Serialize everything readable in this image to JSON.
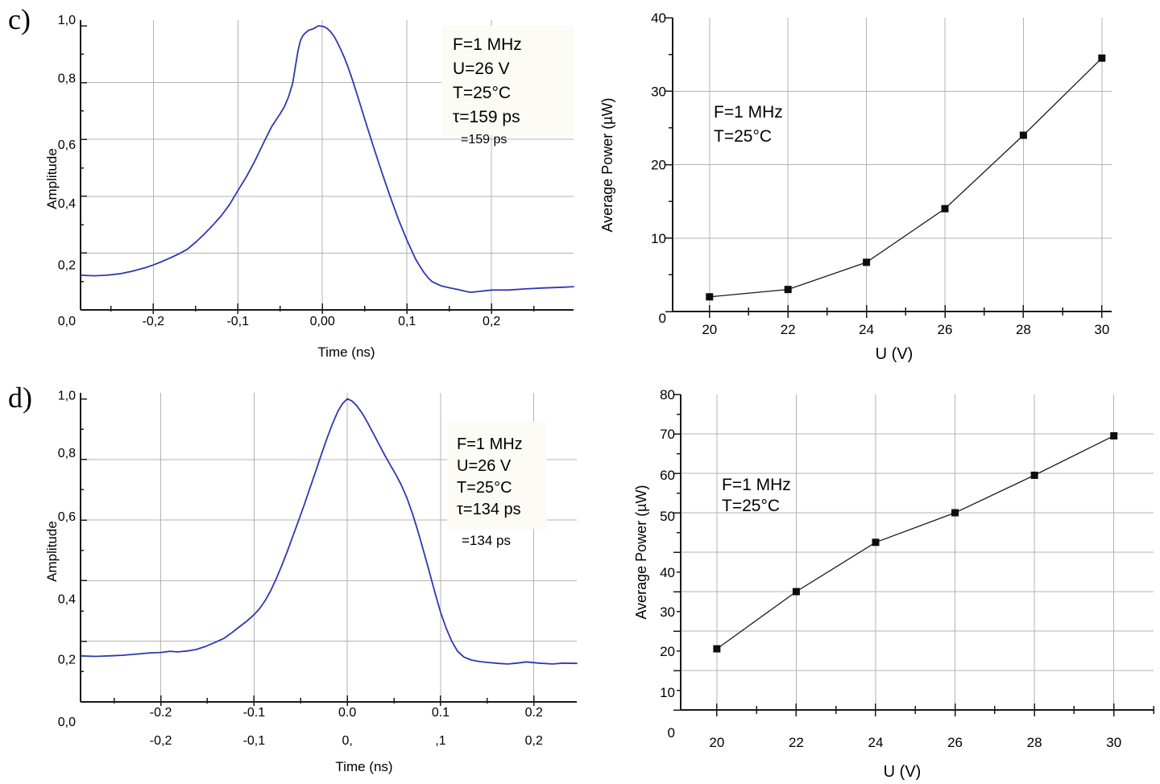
{
  "page": {
    "background": "#ffffff",
    "colors": {
      "grid": "#b3b3b3",
      "axis": "#1a1a1a",
      "text": "#000000",
      "annotation_box_fill": "#fcfbf6"
    }
  },
  "panels": {
    "c_label": "c)",
    "d_label": "d)"
  },
  "chart_data": [
    {
      "id": "pulse-c",
      "type": "line",
      "title": "",
      "xlabel": "Time (ns)",
      "ylabel": "Amplitude",
      "xlim": [
        -0.286,
        0.297
      ],
      "ylim": [
        0,
        1.02
      ],
      "grid": true,
      "legend": "none",
      "line_color": "#3137b0",
      "x_ticks": [
        {
          "v": -0.2,
          "label": "-0,2"
        },
        {
          "v": -0.1,
          "label": "-0,1"
        },
        {
          "v": 0.0,
          "label": "0,00"
        },
        {
          "v": 0.1,
          "label": "0,1"
        },
        {
          "v": 0.2,
          "label": "0,2"
        }
      ],
      "x_minor_step": 0.05,
      "y_ticks": [
        {
          "v": 0.0,
          "label": "0,0",
          "dy": 13
        },
        {
          "v": 0.2,
          "label": "0,2",
          "dy": 14
        },
        {
          "v": 0.4,
          "label": "0,4",
          "dy": 8
        },
        {
          "v": 0.6,
          "label": "0,6",
          "dy": 6
        },
        {
          "v": 0.8,
          "label": "0,8",
          "dy": -6
        },
        {
          "v": 1.0,
          "label": "1,0",
          "dy": -8,
          "grid": false
        }
      ],
      "y_minor_step": 0.1,
      "annotation": {
        "boxed": true,
        "lines": [
          "F=1 MHz",
          "U=26 V",
          "T=25°C",
          "τ=159 ps"
        ]
      },
      "annotation_extra": "=159 ps",
      "series": [
        {
          "name": "normalized pulse shape",
          "x": [
            -0.286,
            -0.27,
            -0.255,
            -0.24,
            -0.225,
            -0.21,
            -0.2,
            -0.19,
            -0.18,
            -0.17,
            -0.16,
            -0.15,
            -0.14,
            -0.13,
            -0.12,
            -0.11,
            -0.1,
            -0.09,
            -0.08,
            -0.07,
            -0.06,
            -0.05,
            -0.045,
            -0.04,
            -0.035,
            -0.032,
            -0.029,
            -0.026,
            -0.023,
            -0.02,
            -0.016,
            -0.012,
            -0.008,
            -0.005,
            -0.002,
            0.002,
            0.006,
            0.01,
            0.014,
            0.018,
            0.022,
            0.026,
            0.03,
            0.035,
            0.04,
            0.045,
            0.05,
            0.06,
            0.07,
            0.08,
            0.09,
            0.1,
            0.11,
            0.115,
            0.12,
            0.125,
            0.13,
            0.14,
            0.15,
            0.16,
            0.17,
            0.175,
            0.185,
            0.2,
            0.22,
            0.24,
            0.26,
            0.285,
            0.297
          ],
          "y": [
            0.122,
            0.12,
            0.122,
            0.127,
            0.136,
            0.148,
            0.158,
            0.17,
            0.183,
            0.197,
            0.213,
            0.238,
            0.266,
            0.297,
            0.33,
            0.37,
            0.42,
            0.468,
            0.523,
            0.585,
            0.645,
            0.69,
            0.715,
            0.75,
            0.8,
            0.855,
            0.91,
            0.948,
            0.966,
            0.975,
            0.985,
            0.988,
            0.994,
            1.0,
            0.999,
            0.997,
            0.99,
            0.978,
            0.962,
            0.94,
            0.915,
            0.888,
            0.857,
            0.814,
            0.768,
            0.72,
            0.672,
            0.578,
            0.487,
            0.4,
            0.318,
            0.245,
            0.18,
            0.155,
            0.132,
            0.113,
            0.099,
            0.085,
            0.078,
            0.072,
            0.065,
            0.062,
            0.065,
            0.07,
            0.07,
            0.074,
            0.077,
            0.08,
            0.082
          ]
        }
      ]
    },
    {
      "id": "power-top",
      "type": "scatter-line",
      "title": "",
      "xlabel": "U (V)",
      "ylabel": "Average Power (µW)",
      "xlim": [
        19.06,
        30.25
      ],
      "ylim": [
        0,
        40
      ],
      "grid": true,
      "legend": "none",
      "marker": "square",
      "marker_color": "#0d0d0d",
      "line_color": "#1a1a1a",
      "x_ticks": [
        {
          "v": 20,
          "label": "20"
        },
        {
          "v": 22,
          "label": "22"
        },
        {
          "v": 24,
          "label": "24"
        },
        {
          "v": 26,
          "label": "26"
        },
        {
          "v": 28,
          "label": "28"
        },
        {
          "v": 30,
          "label": "30"
        }
      ],
      "x_minor_step": 1,
      "y_ticks": [
        {
          "v": 0,
          "label": "0",
          "dy": 8
        },
        {
          "v": 10,
          "label": "10"
        },
        {
          "v": 20,
          "label": "20"
        },
        {
          "v": 30,
          "label": "30"
        },
        {
          "v": 40,
          "label": "40"
        }
      ],
      "y_minor_step": 5,
      "annotation": {
        "boxed": false,
        "lines": [
          "F=1 MHz",
          "T=25°C"
        ]
      },
      "series": [
        {
          "name": "average power vs bias voltage",
          "x": [
            20,
            22,
            24,
            26,
            28,
            30
          ],
          "y": [
            2,
            3,
            6.7,
            14,
            24,
            34.5
          ]
        }
      ]
    },
    {
      "id": "pulse-d",
      "type": "line",
      "title": "",
      "xlabel": "Time (ns)",
      "ylabel": "Amplitude",
      "xlim": [
        -0.286,
        0.246
      ],
      "ylim": [
        0,
        1.02
      ],
      "grid": true,
      "legend": "none",
      "line_color": "#3137b0",
      "x_ticks": [
        {
          "v": -0.2,
          "label": "-0.2",
          "label2": "-0,2"
        },
        {
          "v": -0.1,
          "label": "-0.1",
          "label2": "-0,1"
        },
        {
          "v": 0.0,
          "label": "0.0",
          "label2": "0,"
        },
        {
          "v": 0.1,
          "label": "0.1",
          "label2": ",1"
        },
        {
          "v": 0.2,
          "label": "0.2",
          "label2": "0,2"
        }
      ],
      "x_minor_step": 0.05,
      "y_ticks": [
        {
          "v": 0.0,
          "label": "0,0",
          "dy": 24
        },
        {
          "v": 0.2,
          "label": "0,2",
          "dy": 22
        },
        {
          "v": 0.4,
          "label": "0,4",
          "dy": 22
        },
        {
          "v": 0.6,
          "label": "0,6",
          "dy": -5
        },
        {
          "v": 0.8,
          "label": "0,8",
          "dy": -9
        },
        {
          "v": 1.0,
          "label": "1,0",
          "dy": -5,
          "grid": false
        }
      ],
      "y_minor_step": 0.1,
      "annotation": {
        "boxed": true,
        "lines": [
          "F=1 MHz",
          "U=26 V",
          "T=25°C",
          "τ=134 ps"
        ]
      },
      "annotation_extra": "=134 ps",
      "series": [
        {
          "name": "normalized pulse shape",
          "x": [
            -0.286,
            -0.27,
            -0.255,
            -0.24,
            -0.225,
            -0.21,
            -0.2,
            -0.19,
            -0.182,
            -0.172,
            -0.162,
            -0.152,
            -0.142,
            -0.132,
            -0.124,
            -0.116,
            -0.108,
            -0.1,
            -0.094,
            -0.088,
            -0.082,
            -0.076,
            -0.07,
            -0.064,
            -0.058,
            -0.052,
            -0.046,
            -0.04,
            -0.034,
            -0.028,
            -0.022,
            -0.016,
            -0.01,
            -0.005,
            0.0,
            0.005,
            0.01,
            0.016,
            0.022,
            0.028,
            0.034,
            0.04,
            0.046,
            0.052,
            0.058,
            0.064,
            0.07,
            0.076,
            0.082,
            0.088,
            0.094,
            0.1,
            0.106,
            0.112,
            0.118,
            0.125,
            0.133,
            0.142,
            0.152,
            0.162,
            0.172,
            0.182,
            0.192,
            0.205,
            0.22,
            0.232,
            0.246
          ],
          "y": [
            0.152,
            0.15,
            0.152,
            0.154,
            0.158,
            0.162,
            0.163,
            0.167,
            0.165,
            0.168,
            0.173,
            0.183,
            0.196,
            0.21,
            0.228,
            0.247,
            0.266,
            0.288,
            0.308,
            0.335,
            0.368,
            0.408,
            0.452,
            0.5,
            0.55,
            0.6,
            0.652,
            0.706,
            0.76,
            0.815,
            0.868,
            0.917,
            0.96,
            0.985,
            1.0,
            0.993,
            0.978,
            0.952,
            0.92,
            0.885,
            0.85,
            0.815,
            0.782,
            0.75,
            0.715,
            0.672,
            0.62,
            0.56,
            0.495,
            0.428,
            0.36,
            0.296,
            0.243,
            0.2,
            0.168,
            0.148,
            0.138,
            0.133,
            0.13,
            0.127,
            0.125,
            0.128,
            0.132,
            0.128,
            0.125,
            0.128,
            0.127
          ]
        }
      ]
    },
    {
      "id": "power-bottom",
      "type": "scatter-line",
      "title": "",
      "xlabel": "U (V)",
      "ylabel": "Average Power (µW)",
      "xlim": [
        19.09,
        31.0
      ],
      "ylim": [
        0,
        80
      ],
      "grid": true,
      "legend": "none",
      "marker": "square",
      "marker_color": "#0d0d0d",
      "line_color": "#1a1a1a",
      "x_ticks": [
        {
          "v": 20,
          "label": "20"
        },
        {
          "v": 22,
          "label": "22"
        },
        {
          "v": 24,
          "label": "24"
        },
        {
          "v": 26,
          "label": "26"
        },
        {
          "v": 28,
          "label": "28"
        },
        {
          "v": 30,
          "label": "30"
        }
      ],
      "x_minor_step": 1,
      "y_ticks": [
        {
          "v": 0,
          "label": "0",
          "dy": 28
        },
        {
          "v": 10,
          "label": "10",
          "dy": 27
        },
        {
          "v": 20,
          "label": "20",
          "dy": 25
        },
        {
          "v": 30,
          "label": "30",
          "dy": 25
        },
        {
          "v": 40,
          "label": "40",
          "dy": 25
        },
        {
          "v": 50,
          "label": "50",
          "dy": 4
        },
        {
          "v": 60,
          "label": "60",
          "dy": 2
        },
        {
          "v": 70,
          "label": "70"
        },
        {
          "v": 80,
          "label": "80"
        }
      ],
      "y_minor_step": 5,
      "annotation": {
        "boxed": false,
        "lines": [
          "F=1 MHz",
          "T=25°C"
        ]
      },
      "series": [
        {
          "name": "average power vs bias voltage",
          "x": [
            20,
            22,
            24,
            26,
            28,
            30
          ],
          "y": [
            15.5,
            30,
            42.5,
            50,
            59.5,
            69.5
          ]
        }
      ]
    }
  ]
}
